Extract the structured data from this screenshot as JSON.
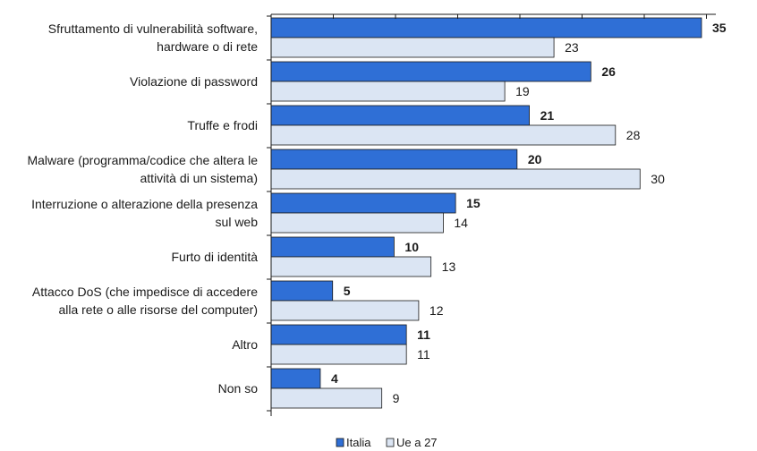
{
  "chart_data": {
    "type": "bar",
    "orientation": "horizontal",
    "categories": [
      "Sfruttamento di vulnerabilità software, hardware o di rete",
      "Violazione di password",
      "Truffe e frodi",
      "Malware (programma/codice che altera le attività di un sistema)",
      "Interruzione o alterazione della presenza sul web",
      "Furto di identità",
      "Attacco DoS (che impedisce di accedere alla rete o alle risorse del computer)",
      "Altro",
      "Non so"
    ],
    "category_lines": [
      [
        "Sfruttamento di vulnerabilità software,",
        "hardware o di rete"
      ],
      [
        "Violazione di password"
      ],
      [
        "Truffe e frodi"
      ],
      [
        "Malware (programma/codice che altera le",
        "attività di un sistema)"
      ],
      [
        "Interruzione o alterazione della presenza",
        "sul web"
      ],
      [
        "Furto di identità"
      ],
      [
        "Attacco DoS (che impedisce di accedere",
        "alla rete o alle risorse del computer)"
      ],
      [
        "Altro"
      ],
      [
        "Non so"
      ]
    ],
    "series": [
      {
        "name": "Italia",
        "values": [
          35,
          26,
          21,
          20,
          15,
          10,
          5,
          11,
          4
        ],
        "color": "#2f6fd6",
        "label_bold": true
      },
      {
        "name": "Ue a 27",
        "values": [
          23,
          19,
          28,
          30,
          14,
          13,
          12,
          11,
          9
        ],
        "color": "#dbe5f3",
        "label_bold": false
      }
    ],
    "xlim": [
      0,
      35
    ],
    "grid": false,
    "legend_position": "bottom-center",
    "bar_outline_color": "#1a1a1a"
  },
  "legend": {
    "italia": "Italia",
    "ue27": "Ue a 27"
  }
}
